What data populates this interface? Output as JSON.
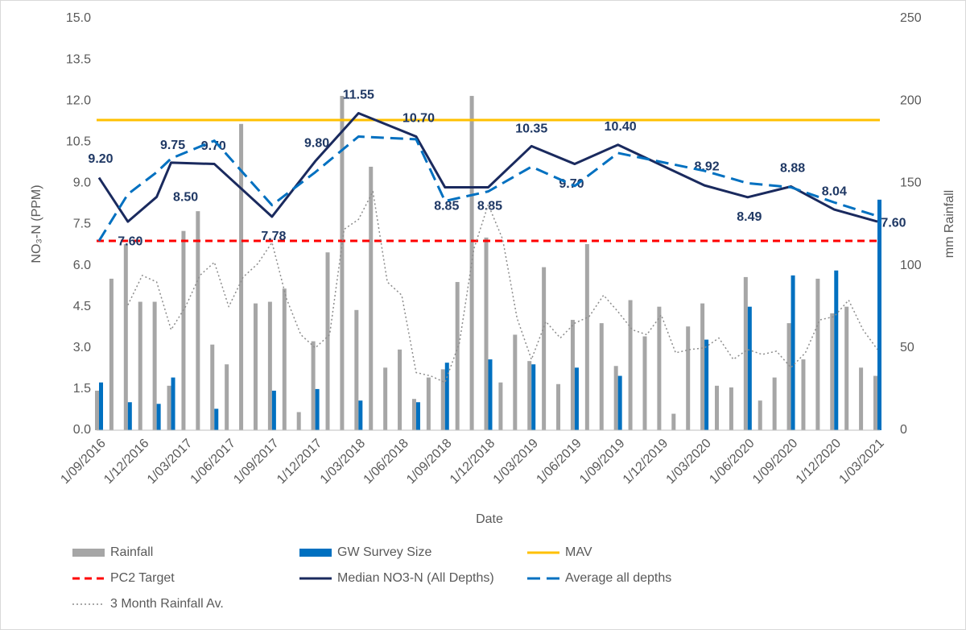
{
  "chart_data": {
    "type": "combo",
    "x_label": "Date",
    "y_label": "NO₃-N (PPM)",
    "y2_label": "mm Rainfall",
    "categories": [
      "1/09/2016",
      null,
      null,
      "1/12/2016",
      null,
      null,
      "1/03/2017",
      null,
      null,
      "1/06/2017",
      null,
      null,
      "1/09/2017",
      null,
      null,
      "1/12/2017",
      null,
      null,
      "1/03/2018",
      null,
      null,
      "1/06/2018",
      null,
      null,
      "1/09/2018",
      null,
      null,
      "1/12/2018",
      null,
      null,
      "1/03/2019",
      null,
      null,
      "1/06/2019",
      null,
      null,
      "1/09/2019",
      null,
      null,
      "1/12/2019",
      null,
      null,
      "1/03/2020",
      null,
      null,
      "1/06/2020",
      null,
      null,
      "1/09/2020",
      null,
      null,
      "1/12/2020",
      null,
      null,
      "1/03/2021"
    ],
    "ylim": [
      0,
      15
    ],
    "yticks": [
      {
        "value": 0,
        "label": "0.0"
      },
      {
        "value": 1.5,
        "label": "1.5"
      },
      {
        "value": 3,
        "label": "3.0"
      },
      {
        "value": 4.5,
        "label": "4.5"
      },
      {
        "value": 6,
        "label": "6.0"
      },
      {
        "value": 7.5,
        "label": "7.5"
      },
      {
        "value": 9,
        "label": "9.0"
      },
      {
        "value": 10.5,
        "label": "10.5"
      },
      {
        "value": 12,
        "label": "12.0"
      },
      {
        "value": 13.5,
        "label": "13.5"
      },
      {
        "value": 15,
        "label": "15.0"
      }
    ],
    "y2lim": [
      0,
      250
    ],
    "y2ticks": [
      0,
      50,
      100,
      150,
      200,
      250
    ],
    "grid": false,
    "connect_gaps": true,
    "legend": "bottom",
    "series": [
      {
        "name": "Rainfall",
        "type": "bar",
        "axis": "y2",
        "color": "#a6a6a6",
        "values": [
          24,
          92,
          113,
          78,
          78,
          27,
          121,
          133,
          52,
          40,
          186,
          77,
          78,
          86,
          11,
          54,
          108,
          203,
          73,
          160,
          38,
          49,
          19,
          32,
          37,
          90,
          203,
          117,
          29,
          58,
          42,
          99,
          28,
          67,
          113,
          65,
          39,
          79,
          57,
          75,
          10,
          63,
          77,
          27,
          26,
          93,
          18,
          32,
          65,
          43,
          92,
          71,
          75,
          38,
          33
        ]
      },
      {
        "name": "GW Survey Size",
        "type": "bar",
        "axis": "y2",
        "color": "#0070c0",
        "values": [
          29,
          null,
          17,
          null,
          16,
          32,
          null,
          null,
          13,
          null,
          null,
          null,
          24,
          null,
          null,
          25,
          null,
          null,
          18,
          null,
          null,
          null,
          17,
          null,
          41,
          null,
          null,
          43,
          null,
          null,
          40,
          null,
          null,
          38,
          null,
          null,
          33,
          null,
          null,
          null,
          null,
          null,
          55,
          null,
          null,
          75,
          null,
          null,
          94,
          null,
          null,
          97,
          null,
          null,
          140
        ]
      },
      {
        "name": "MAV",
        "type": "line",
        "style": "solid",
        "color": "#ffc000",
        "value": 11.3
      },
      {
        "name": "PC2 Target",
        "type": "line",
        "style": "dashed",
        "color": "#ff0000",
        "value": 6.9
      },
      {
        "name": "Median NO3-N (All Depths)",
        "type": "line",
        "style": "solid",
        "color": "#1a2a5e",
        "values": [
          9.2,
          null,
          7.6,
          null,
          8.5,
          9.75,
          null,
          null,
          9.7,
          null,
          null,
          null,
          7.78,
          null,
          null,
          9.8,
          null,
          null,
          11.55,
          null,
          null,
          null,
          10.7,
          null,
          8.85,
          null,
          null,
          8.85,
          null,
          null,
          10.35,
          null,
          null,
          9.7,
          null,
          null,
          10.4,
          null,
          null,
          null,
          null,
          null,
          8.92,
          null,
          null,
          8.49,
          null,
          null,
          8.88,
          null,
          null,
          8.04,
          null,
          null,
          7.6
        ],
        "value_labels": [
          "9.20",
          null,
          "7.60",
          null,
          "8.50",
          "9.75",
          null,
          null,
          "9.70",
          null,
          null,
          null,
          "7.78",
          null,
          null,
          "9.80",
          null,
          null,
          "11.55",
          null,
          null,
          null,
          "10.70",
          null,
          "8.85",
          null,
          null,
          "8.85",
          null,
          null,
          "10.35",
          null,
          null,
          "9.70",
          null,
          null,
          "10.40",
          null,
          null,
          null,
          null,
          null,
          "8.92",
          null,
          null,
          "8.49",
          null,
          null,
          "8.88",
          null,
          null,
          "8.04",
          null,
          null,
          "7.60"
        ]
      },
      {
        "name": "Average all depths",
        "type": "line",
        "style": "longdash",
        "color": "#0070c0",
        "values": [
          6.9,
          null,
          8.6,
          null,
          9.4,
          9.9,
          null,
          null,
          10.55,
          null,
          null,
          null,
          8.2,
          null,
          null,
          9.4,
          null,
          null,
          10.7,
          null,
          null,
          null,
          10.6,
          null,
          8.35,
          null,
          null,
          8.7,
          null,
          null,
          9.6,
          null,
          null,
          8.9,
          null,
          null,
          10.1,
          null,
          null,
          null,
          null,
          null,
          9.45,
          null,
          null,
          9.0,
          null,
          null,
          8.85,
          null,
          null,
          8.3,
          null,
          null,
          7.8
        ]
      },
      {
        "name": "3 Month Rainfall Av.",
        "type": "line",
        "style": "dotted",
        "axis": "y2",
        "color": "#8c8c8c",
        "values": [
          null,
          null,
          76,
          94,
          90,
          61,
          75,
          94,
          102,
          75,
          93,
          101,
          114,
          80,
          58,
          50,
          58,
          122,
          128,
          145,
          90,
          82,
          35,
          33,
          29,
          53,
          110,
          137,
          116,
          68,
          43,
          66,
          56,
          65,
          69,
          82,
          72,
          61,
          58,
          70,
          47,
          49,
          50,
          56,
          43,
          49,
          46,
          48,
          38,
          47,
          67,
          69,
          79,
          61,
          49
        ]
      }
    ]
  }
}
